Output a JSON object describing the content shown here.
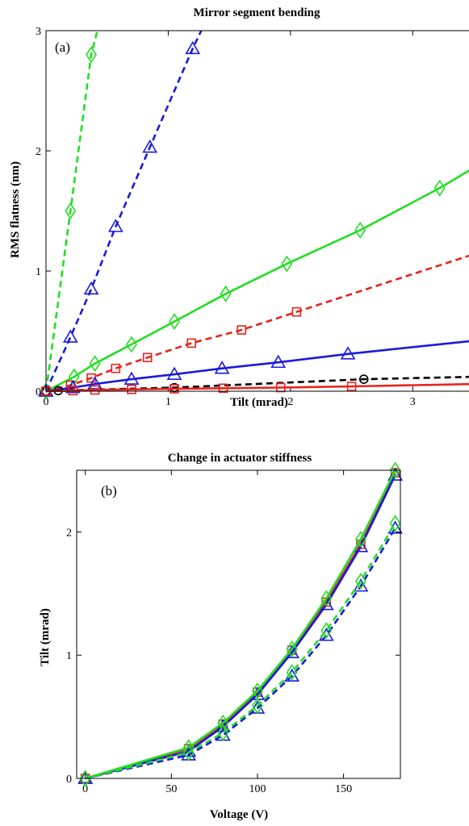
{
  "chart_data": [
    {
      "type": "line",
      "title": "Mirror segment bending",
      "panel_label": "(a)",
      "xlabel": "Tilt (mrad)",
      "ylabel": "RMS flatness (nm)",
      "xlim": [
        0,
        3.5
      ],
      "ylim": [
        0,
        3
      ],
      "xticks": [
        0,
        1,
        2,
        3
      ],
      "yticks": [
        0,
        1,
        2,
        3
      ],
      "grid": false,
      "colors": {
        "green": "#22dd22",
        "blue": "#1a1adc",
        "red": "#e8231c",
        "black": "#000000"
      },
      "series": [
        {
          "color": "green",
          "dash": true,
          "marker": "diamond",
          "x": [
            0,
            0.2,
            0.37,
            0.42
          ],
          "y": [
            0,
            1.5,
            2.8,
            3.0
          ],
          "marker_count": 3
        },
        {
          "color": "blue",
          "dash": true,
          "marker": "triangle",
          "x": [
            0,
            0.2,
            0.37,
            0.57,
            0.85,
            1.2,
            1.27
          ],
          "y": [
            0,
            0.45,
            0.85,
            1.37,
            2.03,
            2.85,
            3.0
          ],
          "marker_count": 6
        },
        {
          "color": "green",
          "dash": false,
          "marker": "diamond",
          "x": [
            0,
            0.23,
            0.4,
            0.7,
            1.05,
            1.47,
            1.97,
            2.57,
            3.22,
            3.5
          ],
          "y": [
            0,
            0.12,
            0.23,
            0.39,
            0.58,
            0.81,
            1.06,
            1.34,
            1.69,
            1.86
          ],
          "marker_count": 9
        },
        {
          "color": "red",
          "dash": true,
          "marker": "square",
          "x": [
            0,
            0.2,
            0.37,
            0.57,
            0.83,
            1.19,
            1.6,
            2.05,
            3.5
          ],
          "y": [
            0,
            0.05,
            0.11,
            0.19,
            0.28,
            0.4,
            0.51,
            0.66,
            1.14
          ],
          "marker_count": 8
        },
        {
          "color": "blue",
          "dash": false,
          "marker": "triangle",
          "x": [
            0,
            0.22,
            0.4,
            0.7,
            1.05,
            1.44,
            1.9,
            2.47,
            3.5
          ],
          "y": [
            0,
            0.03,
            0.06,
            0.1,
            0.14,
            0.19,
            0.24,
            0.31,
            0.42
          ],
          "marker_count": 8
        },
        {
          "color": "black",
          "dash": true,
          "marker": "circle",
          "x": [
            0,
            0.1,
            1.05,
            2.6,
            3.5
          ],
          "y": [
            0,
            0.005,
            0.03,
            0.1,
            0.12
          ],
          "marker_count": 4
        },
        {
          "color": "red",
          "dash": false,
          "marker": "square",
          "x": [
            0,
            0.22,
            0.4,
            0.7,
            1.05,
            1.45,
            1.92,
            2.5,
            3.5
          ],
          "y": [
            0,
            0.005,
            0.01,
            0.015,
            0.02,
            0.025,
            0.03,
            0.04,
            0.06
          ],
          "marker_count": 8
        }
      ]
    },
    {
      "type": "line",
      "title": "Change in actuator stiffness",
      "panel_label": "(b)",
      "xlabel": "Voltage (V)",
      "ylabel": "Tilt (mrad)",
      "xlim": [
        -5,
        183
      ],
      "ylim": [
        0,
        2.5
      ],
      "xticks": [
        0,
        50,
        100,
        150
      ],
      "yticks": [
        0,
        1,
        2
      ],
      "grid": false,
      "colors": {
        "green": "#22dd22",
        "blue": "#1a1adc",
        "red": "#e8231c"
      },
      "series": [
        {
          "color": "red",
          "dash": false,
          "marker": "square",
          "x": [
            0,
            60,
            80,
            100,
            120,
            140,
            160,
            180
          ],
          "y": [
            0,
            0.24,
            0.44,
            0.7,
            1.04,
            1.43,
            1.9,
            2.48
          ]
        },
        {
          "color": "blue",
          "dash": false,
          "marker": "triangle",
          "x": [
            0,
            60,
            80,
            100,
            120,
            140,
            160,
            180
          ],
          "y": [
            0,
            0.22,
            0.42,
            0.68,
            1.02,
            1.41,
            1.88,
            2.46
          ]
        },
        {
          "color": "green",
          "dash": false,
          "marker": "diamond",
          "x": [
            0,
            60,
            80,
            100,
            120,
            140,
            160,
            180
          ],
          "y": [
            0,
            0.25,
            0.45,
            0.71,
            1.05,
            1.46,
            1.94,
            2.5
          ]
        },
        {
          "color": "blue",
          "dash": true,
          "marker": "triangle",
          "x": [
            0,
            60,
            80,
            100,
            120,
            140,
            160,
            180
          ],
          "y": [
            0,
            0.19,
            0.35,
            0.57,
            0.83,
            1.16,
            1.56,
            2.03
          ]
        },
        {
          "color": "green",
          "dash": true,
          "marker": "diamond",
          "x": [
            0,
            60,
            80,
            100,
            120,
            140,
            160,
            180
          ],
          "y": [
            0,
            0.21,
            0.37,
            0.59,
            0.86,
            1.2,
            1.6,
            2.07
          ]
        }
      ]
    }
  ]
}
